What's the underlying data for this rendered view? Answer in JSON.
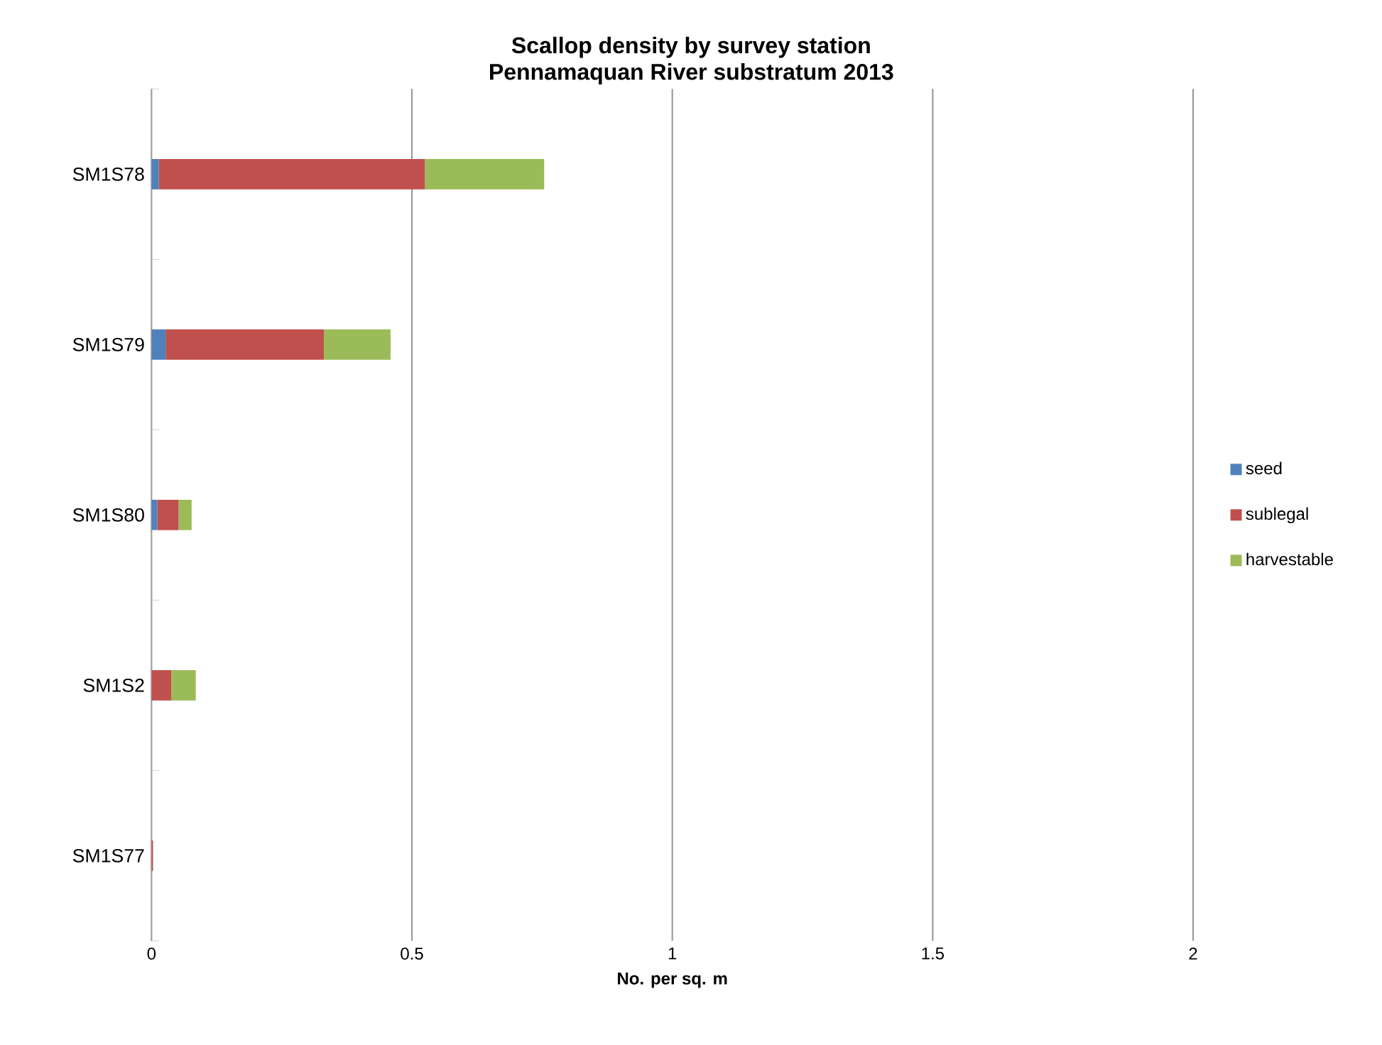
{
  "chart_data": {
    "type": "bar",
    "orientation": "horizontal",
    "stacked": true,
    "title": "Scallop density by survey station",
    "subtitle": "Pennamaquan River substratum 2013",
    "xlabel": "No. per sq. m",
    "categories": [
      "SM1S78",
      "SM1S79",
      "SM1S80",
      "SM1S2",
      "SM1S77"
    ],
    "series": [
      {
        "name": "seed",
        "color": "#4f81bd",
        "values": [
          0.014,
          0.027,
          0.011,
          0,
          0
        ]
      },
      {
        "name": "sublegal",
        "color": "#c0504d",
        "values": [
          0.511,
          0.304,
          0.041,
          0.038,
          0.003
        ]
      },
      {
        "name": "harvestable",
        "color": "#9bbb59",
        "values": [
          0.229,
          0.128,
          0.025,
          0.047,
          0
        ]
      }
    ],
    "xlim": [
      0,
      2
    ],
    "xticks": [
      0,
      0.5,
      1,
      1.5,
      2
    ],
    "grid": "x",
    "legend": "right"
  }
}
